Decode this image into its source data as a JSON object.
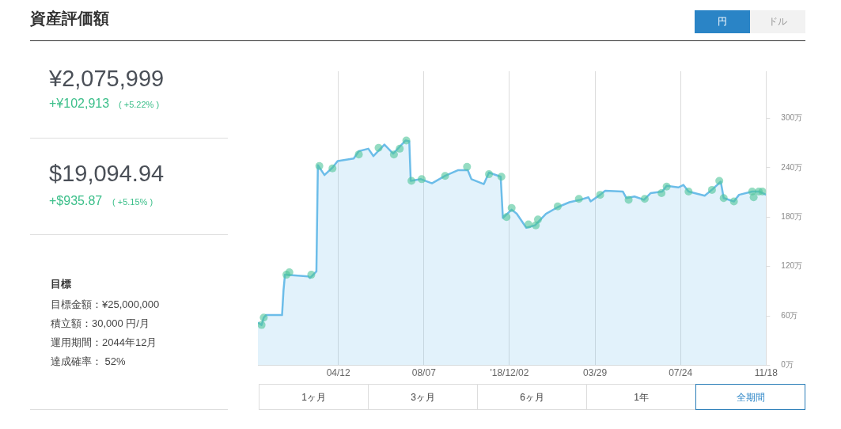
{
  "chart_data": {
    "type": "area",
    "title": "資産評価額",
    "xlim": [
      "2017-12-23",
      "2019-11-18"
    ],
    "xticks": [
      {
        "value": "2018-04-12",
        "label": "04/12"
      },
      {
        "value": "2018-08-07",
        "label": "08/07"
      },
      {
        "value": "2018-12-02",
        "label": "'18/12/02"
      },
      {
        "value": "2019-03-29",
        "label": "03/29"
      },
      {
        "value": "2019-07-24",
        "label": "07/24"
      },
      {
        "value": "2019-11-18",
        "label": "11/18"
      }
    ],
    "ylim": [
      0,
      357
    ],
    "yticks": [
      {
        "value": 0,
        "label": "0万"
      },
      {
        "value": 60,
        "label": "60万"
      },
      {
        "value": 120,
        "label": "120万"
      },
      {
        "value": 180,
        "label": "180万"
      },
      {
        "value": 240,
        "label": "240万"
      },
      {
        "value": 300,
        "label": "300万"
      }
    ],
    "grid": "x",
    "legend": false,
    "series": [
      {
        "color": "#6cbde9",
        "x": [
          "2017-12-23",
          "2017-12-28",
          "2017-12-31",
          "2018-01-03",
          "2018-01-25",
          "2018-01-27",
          "2018-01-29",
          "2018-03-02",
          "2018-03-04",
          "2018-03-13",
          "2018-03-15",
          "2018-03-24",
          "2018-04-04",
          "2018-04-11",
          "2018-05-03",
          "2018-05-10",
          "2018-05-23",
          "2018-05-30",
          "2018-06-14",
          "2018-06-26",
          "2018-07-13",
          "2018-07-18",
          "2018-07-20",
          "2018-08-03",
          "2018-08-18",
          "2018-09-05",
          "2018-09-23",
          "2018-10-06",
          "2018-10-11",
          "2018-10-28",
          "2018-11-04",
          "2018-11-20",
          "2018-11-23",
          "2018-12-05",
          "2018-12-12",
          "2018-12-25",
          "2019-01-06",
          "2019-01-21",
          "2019-02-06",
          "2019-02-22",
          "2019-03-09",
          "2019-03-20",
          "2019-03-23",
          "2019-04-05",
          "2019-04-12",
          "2019-05-06",
          "2019-05-11",
          "2019-05-22",
          "2019-06-04",
          "2019-06-13",
          "2019-06-29",
          "2019-07-05",
          "2019-07-21",
          "2019-07-28",
          "2019-08-04",
          "2019-08-26",
          "2019-09-06",
          "2019-09-17",
          "2019-09-21",
          "2019-10-05",
          "2019-10-12",
          "2019-10-30",
          "2019-11-09",
          "2019-11-18"
        ],
        "values": [
          52,
          49,
          58,
          61,
          61,
          91,
          110,
          108,
          106,
          114,
          243,
          231,
          240,
          248,
          251,
          260,
          263,
          254,
          268,
          257,
          273,
          272,
          224,
          226,
          221,
          230,
          237,
          237,
          226,
          220,
          234,
          229,
          179,
          189,
          184,
          167,
          170,
          184,
          192,
          198,
          201,
          204,
          199,
          207,
          212,
          211,
          203,
          205,
          201,
          209,
          211,
          218,
          216,
          219,
          211,
          206,
          214,
          223,
          203,
          199,
          207,
          211,
          211,
          207
        ]
      },
      {
        "type": "scatter",
        "marker": "circle",
        "color": "#4fc49a",
        "x": [
          "2017-12-28",
          "2017-12-31",
          "2018-01-31",
          "2018-02-04",
          "2018-03-06",
          "2018-03-17",
          "2018-04-04",
          "2018-05-10",
          "2018-06-06",
          "2018-06-27",
          "2018-07-05",
          "2018-07-14",
          "2018-07-21",
          "2018-08-04",
          "2018-09-05",
          "2018-10-05",
          "2018-11-04",
          "2018-11-21",
          "2018-11-28",
          "2018-12-05",
          "2018-12-28",
          "2019-01-07",
          "2019-01-10",
          "2019-02-06",
          "2019-03-07",
          "2019-04-05",
          "2019-05-14",
          "2019-06-05",
          "2019-06-28",
          "2019-07-05",
          "2019-08-04",
          "2019-09-05",
          "2019-09-15",
          "2019-09-21",
          "2019-10-05",
          "2019-10-30",
          "2019-11-01",
          "2019-11-08",
          "2019-11-13"
        ],
        "values": [
          49,
          58,
          110,
          113,
          110,
          242,
          239,
          256,
          264,
          256,
          263,
          273,
          224,
          226,
          230,
          241,
          232,
          229,
          180,
          191,
          171,
          170,
          177,
          193,
          202,
          207,
          201,
          202,
          209,
          217,
          211,
          213,
          224,
          203,
          199,
          211,
          204,
          211,
          211
        ]
      }
    ],
    "annotations": [
      "¥2,075,999",
      "+¥102,913",
      "( +5.22% )",
      "$19,094.94",
      "+$935.87",
      "( +5.15% )",
      "目標",
      "目標金額：¥25,000,000",
      "積立額：30,000 円/月",
      "運用期間：2044年12月",
      "達成確率： 52%",
      "円",
      "ドル",
      "1ヶ月",
      "3ヶ月",
      "6ヶ月",
      "1年",
      "全期間"
    ]
  }
}
